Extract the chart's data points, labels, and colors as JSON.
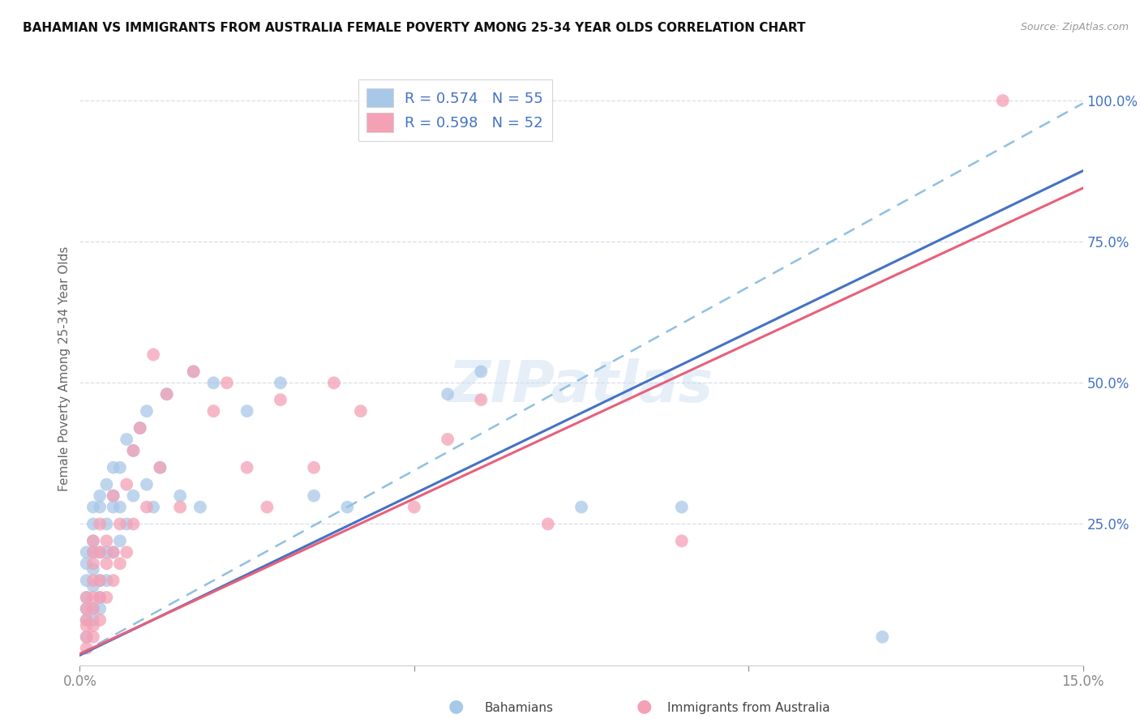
{
  "title": "BAHAMIAN VS IMMIGRANTS FROM AUSTRALIA FEMALE POVERTY AMONG 25-34 YEAR OLDS CORRELATION CHART",
  "source": "Source: ZipAtlas.com",
  "ylabel": "Female Poverty Among 25-34 Year Olds",
  "x_min": 0.0,
  "x_max": 0.15,
  "y_min": 0.0,
  "y_max": 1.05,
  "x_tick_positions": [
    0.0,
    0.05,
    0.1,
    0.15
  ],
  "x_tick_labels": [
    "0.0%",
    "",
    "",
    "15.0%"
  ],
  "y_tick_positions": [
    0.0,
    0.25,
    0.5,
    0.75,
    1.0
  ],
  "y_tick_labels": [
    "",
    "25.0%",
    "50.0%",
    "75.0%",
    "100.0%"
  ],
  "bahamians_R": 0.574,
  "bahamians_N": 55,
  "australia_R": 0.598,
  "australia_N": 52,
  "bahamian_color": "#a8c8e8",
  "australia_color": "#f4a0b5",
  "bahamian_line_color": "#4472c4",
  "australia_line_color": "#e8607a",
  "bahamian_dash_color": "#90c0e0",
  "watermark": "ZIPatlas",
  "tick_color": "#4472c4",
  "grid_color": "#d8dde8",
  "bahamian_x": [
    0.001,
    0.001,
    0.001,
    0.001,
    0.001,
    0.001,
    0.001,
    0.002,
    0.002,
    0.002,
    0.002,
    0.002,
    0.002,
    0.002,
    0.002,
    0.003,
    0.003,
    0.003,
    0.003,
    0.003,
    0.003,
    0.004,
    0.004,
    0.004,
    0.004,
    0.005,
    0.005,
    0.005,
    0.005,
    0.006,
    0.006,
    0.006,
    0.007,
    0.007,
    0.008,
    0.008,
    0.009,
    0.01,
    0.01,
    0.011,
    0.012,
    0.013,
    0.015,
    0.017,
    0.018,
    0.02,
    0.025,
    0.03,
    0.035,
    0.04,
    0.055,
    0.06,
    0.075,
    0.09,
    0.12
  ],
  "bahamian_y": [
    0.05,
    0.08,
    0.1,
    0.12,
    0.15,
    0.18,
    0.2,
    0.08,
    0.1,
    0.14,
    0.17,
    0.2,
    0.22,
    0.25,
    0.28,
    0.1,
    0.12,
    0.15,
    0.2,
    0.28,
    0.3,
    0.15,
    0.2,
    0.25,
    0.32,
    0.2,
    0.28,
    0.3,
    0.35,
    0.22,
    0.28,
    0.35,
    0.25,
    0.4,
    0.3,
    0.38,
    0.42,
    0.32,
    0.45,
    0.28,
    0.35,
    0.48,
    0.3,
    0.52,
    0.28,
    0.5,
    0.45,
    0.5,
    0.3,
    0.28,
    0.48,
    0.52,
    0.28,
    0.28,
    0.05
  ],
  "australia_x": [
    0.001,
    0.001,
    0.001,
    0.001,
    0.001,
    0.001,
    0.002,
    0.002,
    0.002,
    0.002,
    0.002,
    0.002,
    0.002,
    0.002,
    0.003,
    0.003,
    0.003,
    0.003,
    0.003,
    0.004,
    0.004,
    0.004,
    0.005,
    0.005,
    0.005,
    0.006,
    0.006,
    0.007,
    0.007,
    0.008,
    0.008,
    0.009,
    0.01,
    0.011,
    0.012,
    0.013,
    0.015,
    0.017,
    0.02,
    0.022,
    0.025,
    0.028,
    0.03,
    0.035,
    0.038,
    0.042,
    0.05,
    0.055,
    0.06,
    0.07,
    0.09,
    0.138
  ],
  "australia_y": [
    0.03,
    0.05,
    0.07,
    0.08,
    0.1,
    0.12,
    0.05,
    0.07,
    0.1,
    0.12,
    0.15,
    0.18,
    0.2,
    0.22,
    0.08,
    0.12,
    0.15,
    0.2,
    0.25,
    0.12,
    0.18,
    0.22,
    0.15,
    0.2,
    0.3,
    0.18,
    0.25,
    0.2,
    0.32,
    0.25,
    0.38,
    0.42,
    0.28,
    0.55,
    0.35,
    0.48,
    0.28,
    0.52,
    0.45,
    0.5,
    0.35,
    0.28,
    0.47,
    0.35,
    0.5,
    0.45,
    0.28,
    0.4,
    0.47,
    0.25,
    0.22,
    1.0
  ],
  "bahamian_slope": 6.5,
  "bahamian_intercept": 0.02,
  "australia_slope": 5.5,
  "australia_intercept": 0.02
}
